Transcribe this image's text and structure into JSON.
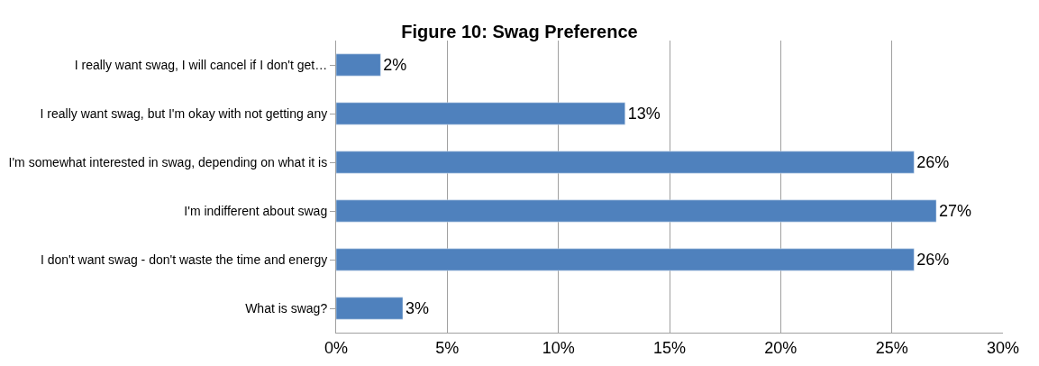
{
  "chart_data": {
    "type": "bar",
    "orientation": "horizontal",
    "title": "Figure 10: Swag Preference",
    "categories": [
      "I really want swag, I will cancel if I don't get…",
      "I really want swag, but I'm okay with not getting any",
      "I'm somewhat interested in swag, depending on what it is",
      "I'm indifferent about swag",
      "I don't want swag - don't waste the time and energy",
      "What is swag?"
    ],
    "values": [
      2,
      13,
      26,
      27,
      26,
      3
    ],
    "value_labels": [
      "2%",
      "13%",
      "26%",
      "27%",
      "26%",
      "3%"
    ],
    "color": "#4f81bd",
    "xlim": [
      0,
      30
    ],
    "xticks": [
      {
        "value": 0,
        "label": "0%"
      },
      {
        "value": 5,
        "label": "5%"
      },
      {
        "value": 10,
        "label": "10%"
      },
      {
        "value": 15,
        "label": "15%"
      },
      {
        "value": 20,
        "label": "20%"
      },
      {
        "value": 25,
        "label": "25%"
      },
      {
        "value": 30,
        "label": "30%"
      }
    ],
    "grid": "x",
    "legend": false
  }
}
